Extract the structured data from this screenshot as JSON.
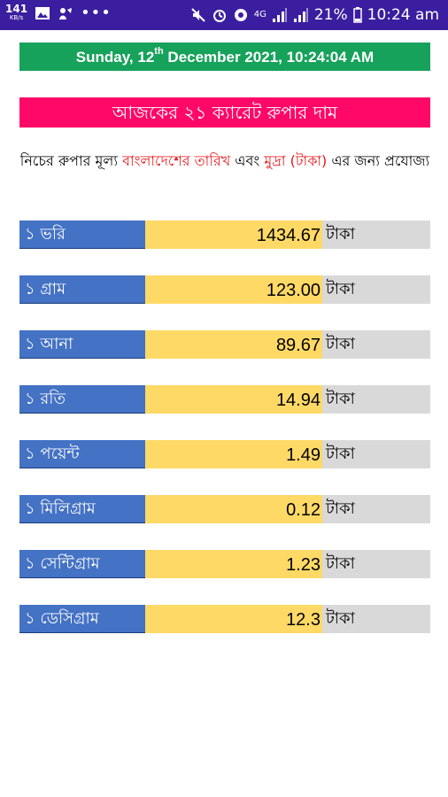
{
  "status_bar": {
    "kb_top": "141",
    "kb_bottom": "KB/s",
    "battery": "21%",
    "time": "10:24 am",
    "net": "4G",
    "icons": [
      "image-icon",
      "assistant-icon",
      "more-dots-icon",
      "mute-icon",
      "alarm-icon",
      "sync-icon",
      "signal-icon",
      "signal-icon-2",
      "battery-icon"
    ]
  },
  "date_banner": {
    "day_part": "Sunday, 12",
    "suffix": "th",
    "rest": " December 2021, 10:24:04 AM"
  },
  "title": "আজকের ২১ ক্যারেট রুপার দাম",
  "note": {
    "part1": "নিচের রুপার মূল্য ",
    "part2": "বাংলাদেশের তারিখ",
    "part3": " এবং ",
    "part4": "মুদ্রা (টাকা)",
    "part5": " এর জন্য প্রযোজ্য"
  },
  "rates": [
    {
      "unit": "১ ভরি",
      "value": "1434.67",
      "currency": "টাকা"
    },
    {
      "unit": "১ গ্রাম",
      "value": "123.00",
      "currency": "টাকা"
    },
    {
      "unit": "১ আনা",
      "value": "89.67",
      "currency": "টাকা"
    },
    {
      "unit": "১ রতি",
      "value": "14.94",
      "currency": "টাকা"
    },
    {
      "unit": "১ পয়েন্ট",
      "value": "1.49",
      "currency": "টাকা"
    },
    {
      "unit": "১ মিলিগ্রাম",
      "value": "0.12",
      "currency": "টাকা"
    },
    {
      "unit": "১ সেন্টিগ্রাম",
      "value": "1.23",
      "currency": "টাকা"
    },
    {
      "unit": "১ ডেসিগ্রাম",
      "value": "12.3",
      "currency": "টাকা"
    }
  ],
  "colors": {
    "status_bar": "#3b1e9f",
    "date_banner": "#17a25b",
    "title_banner": "#ff0868",
    "unit_cell": "#4472c4",
    "value_cell": "#ffd966",
    "currency_cell": "#d9d9d9",
    "highlight_text": "#e8151b"
  }
}
